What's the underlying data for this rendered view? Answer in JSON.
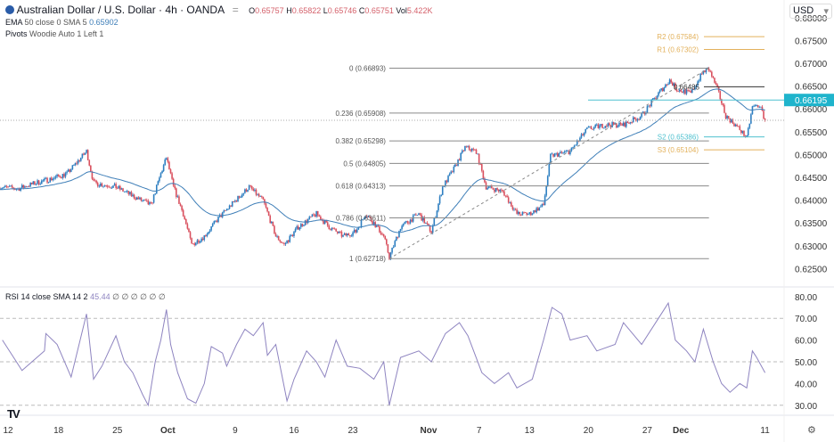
{
  "header": {
    "symbol_icon": "aud-usd-flag-icon",
    "title": "Australian Dollar / U.S. Dollar · 4h · OANDA",
    "ohlc": {
      "o_label": "O",
      "o": "0.65757",
      "h_label": "H",
      "h": "0.65822",
      "l_label": "L",
      "l": "0.65746",
      "c_label": "C",
      "c": "0.65751",
      "vol_label": "Vol",
      "vol": "5.422K"
    },
    "ema": {
      "name": "EMA",
      "params": "50 close 0 SMA 5",
      "value": "0.65902"
    },
    "pivots": {
      "name": "Pivots",
      "params": "Woodie Auto 1 Left 1"
    },
    "currency": "USD"
  },
  "colors": {
    "up": "#2e7fc1",
    "down": "#d9505e",
    "ema": "#3f7fb8",
    "fib": "#8a8a8a",
    "pivot_r": "#e3b15b",
    "pivot_s2": "#4fc1cf",
    "pivot_s3": "#e3b15b",
    "hline": "#4fc1cf",
    "rsi": "#8e84c0"
  },
  "chart_data": [
    {
      "type": "candlestick",
      "title": "Australian Dollar / U.S. Dollar · 4h · OANDA",
      "ylim": [
        0.625,
        0.68
      ],
      "y_ticks": [
        "0.68000",
        "0.67500",
        "0.67000",
        "0.66500",
        "0.66000",
        "0.65500",
        "0.65000",
        "0.64500",
        "0.64000",
        "0.63500",
        "0.63000",
        "0.62500"
      ],
      "x_ticks": [
        [
          "09-12",
          "12"
        ],
        [
          "09-18",
          "18"
        ],
        [
          "09-25",
          "25"
        ],
        [
          "10-01",
          "Oct"
        ],
        [
          "10-09",
          "9"
        ],
        [
          "10-16",
          "16"
        ],
        [
          "10-23",
          "23"
        ],
        [
          "11-01",
          "Nov"
        ],
        [
          "11-07",
          "7"
        ],
        [
          "11-13",
          "13"
        ],
        [
          "11-20",
          "20"
        ],
        [
          "11-27",
          "27"
        ],
        [
          "12-01",
          "Dec"
        ],
        [
          "12-11",
          "11"
        ]
      ],
      "price_path": [
        [
          "09-11 00",
          0.6429
        ],
        [
          "09-13 04",
          0.6425
        ],
        [
          "09-15 08",
          0.6438
        ],
        [
          "09-17 08",
          0.6448
        ],
        [
          "09-19 00",
          0.6458
        ],
        [
          "09-21 08",
          0.6507
        ],
        [
          "09-22 04",
          0.6438
        ],
        [
          "09-24 20",
          0.6429
        ],
        [
          "09-26 20",
          0.6409
        ],
        [
          "09-29 00",
          0.6389
        ],
        [
          "09-30 04",
          0.6458
        ],
        [
          "09-30 20",
          0.6493
        ],
        [
          "10-01 16",
          0.6429
        ],
        [
          "10-02 20",
          0.637
        ],
        [
          "10-03 20",
          0.6302
        ],
        [
          "10-05 08",
          0.6321
        ],
        [
          "10-07 00",
          0.636
        ],
        [
          "10-08 12",
          0.6389
        ],
        [
          "10-10 16",
          0.6429
        ],
        [
          "10-12 08",
          0.6399
        ],
        [
          "10-13 20",
          0.6321
        ],
        [
          "10-14 20",
          0.6302
        ],
        [
          "10-16 12",
          0.6341
        ],
        [
          "10-18 16",
          0.637
        ],
        [
          "10-20 04",
          0.6341
        ],
        [
          "10-21 20",
          0.6321
        ],
        [
          "10-23 08",
          0.6331
        ],
        [
          "10-24 12",
          0.637
        ],
        [
          "10-25 12",
          0.635
        ],
        [
          "10-26 16",
          0.6321
        ],
        [
          "10-27 08",
          0.6275
        ],
        [
          "10-28 16",
          0.6341
        ],
        [
          "10-30 20",
          0.637
        ],
        [
          "11-01 08",
          0.6331
        ],
        [
          "11-02 16",
          0.6429
        ],
        [
          "11-04 00",
          0.6468
        ],
        [
          "11-05 08",
          0.6516
        ],
        [
          "11-06 16",
          0.6507
        ],
        [
          "11-07 20",
          0.6429
        ],
        [
          "11-09 20",
          0.6419
        ],
        [
          "11-11 12",
          0.637
        ],
        [
          "11-13 00",
          0.637
        ],
        [
          "11-14 16",
          0.6389
        ],
        [
          "11-15 12",
          0.6497
        ],
        [
          "11-17 20",
          0.6507
        ],
        [
          "11-19 20",
          0.6555
        ],
        [
          "11-22 00",
          0.6565
        ],
        [
          "11-24 04",
          0.6565
        ],
        [
          "11-26 08",
          0.6585
        ],
        [
          "11-28 08",
          0.6634
        ],
        [
          "11-29 16",
          0.6663
        ],
        [
          "11-30 12",
          0.6643
        ],
        [
          "12-02 04",
          0.6634
        ],
        [
          "12-03 16",
          0.6682
        ],
        [
          "12-04 08",
          0.6686
        ],
        [
          "12-05 08",
          0.6643
        ],
        [
          "12-06 08",
          0.6585
        ],
        [
          "12-08 00",
          0.6555
        ],
        [
          "12-08 20",
          0.6536
        ],
        [
          "12-09 12",
          0.6604
        ],
        [
          "12-10 08",
          0.6608
        ],
        [
          "12-11 00",
          0.6575
        ]
      ],
      "last_price": 0.65751,
      "horizontal_line": {
        "value": 0.66195,
        "label": "0.66195"
      },
      "fibonacci": {
        "from": [
          "10-27 08",
          0.62718
        ],
        "to": [
          "12-04 08",
          0.66893
        ],
        "levels": [
          {
            "label": "0 (0.66893)",
            "value": 0.66893
          },
          {
            "label": "0.236 (0.65908)",
            "value": 0.65908
          },
          {
            "label": "0.382 (0.65298)",
            "value": 0.65298
          },
          {
            "label": "0.5 (0.64805)",
            "value": 0.64805
          },
          {
            "label": "0.618 (0.64313)",
            "value": 0.64313
          },
          {
            "label": "0.786 (0.63611)",
            "value": 0.63611
          },
          {
            "label": "1 (0.62718)",
            "value": 0.62718
          }
        ]
      },
      "pivot_levels": [
        {
          "label": "R2 (0.67584)",
          "value": 0.67584,
          "color": "pivot_r"
        },
        {
          "label": "R1 (0.67302)",
          "value": 0.67302,
          "color": "pivot_r"
        },
        {
          "label": "0.66485",
          "value": 0.66485,
          "color": "dark"
        },
        {
          "label": "S2 (0.65386)",
          "value": 0.65386,
          "color": "pivot_s2"
        },
        {
          "label": "S3 (0.65104)",
          "value": 0.65104,
          "color": "pivot_s3"
        }
      ]
    },
    {
      "type": "line",
      "title": "RSI 14 close SMA 14 2",
      "value_label": "45.44",
      "extra": "∅ ∅ ∅ ∅ ∅ ∅",
      "ylim": [
        25,
        82
      ],
      "y_ticks": [
        "80.00",
        "70.00",
        "60.00",
        "50.00",
        "40.00",
        "30.00"
      ],
      "bands": [
        70,
        50,
        30
      ],
      "series": [
        [
          "09-11 08",
          60
        ],
        [
          "09-12 16",
          52
        ],
        [
          "09-13 16",
          46
        ],
        [
          "09-16 08",
          55
        ],
        [
          "09-16 12",
          63
        ],
        [
          "09-17 20",
          58
        ],
        [
          "09-19 12",
          43
        ],
        [
          "09-21 08",
          72
        ],
        [
          "09-21 16",
          60
        ],
        [
          "09-22 04",
          42
        ],
        [
          "09-23 04",
          48
        ],
        [
          "09-24 20",
          62
        ],
        [
          "09-25 20",
          50
        ],
        [
          "09-26 20",
          45
        ],
        [
          "09-28 00",
          35
        ],
        [
          "09-28 16",
          30
        ],
        [
          "09-29 12",
          50
        ],
        [
          "09-30 04",
          60
        ],
        [
          "09-30 20",
          74
        ],
        [
          "10-01 08",
          58
        ],
        [
          "10-02 04",
          45
        ],
        [
          "10-03 08",
          33
        ],
        [
          "10-04 08",
          31
        ],
        [
          "10-05 08",
          40
        ],
        [
          "10-06 04",
          57
        ],
        [
          "10-07 12",
          54
        ],
        [
          "10-08 00",
          48
        ],
        [
          "10-09 04",
          58
        ],
        [
          "10-10 04",
          65
        ],
        [
          "10-11 04",
          62
        ],
        [
          "10-12 08",
          68
        ],
        [
          "10-12 20",
          53
        ],
        [
          "10-13 20",
          58
        ],
        [
          "10-15 04",
          32
        ],
        [
          "10-16 00",
          42
        ],
        [
          "10-17 12",
          55
        ],
        [
          "10-18 16",
          50
        ],
        [
          "10-19 16",
          43
        ],
        [
          "10-21 00",
          60
        ],
        [
          "10-22 08",
          48
        ],
        [
          "10-23 20",
          47
        ],
        [
          "10-25 12",
          42
        ],
        [
          "10-26 16",
          50
        ],
        [
          "10-27 08",
          30
        ],
        [
          "10-28 16",
          52
        ],
        [
          "10-30 20",
          55
        ],
        [
          "11-01 08",
          50
        ],
        [
          "11-03 00",
          63
        ],
        [
          "11-04 16",
          68
        ],
        [
          "11-05 16",
          62
        ],
        [
          "11-07 08",
          45
        ],
        [
          "11-08 20",
          40
        ],
        [
          "11-10 12",
          45
        ],
        [
          "11-11 12",
          38
        ],
        [
          "11-13 08",
          42
        ],
        [
          "11-14 16",
          60
        ],
        [
          "11-15 16",
          75
        ],
        [
          "11-16 20",
          72
        ],
        [
          "11-17 20",
          60
        ],
        [
          "11-19 20",
          62
        ],
        [
          "11-21 00",
          55
        ],
        [
          "11-23 04",
          58
        ],
        [
          "11-24 04",
          68
        ],
        [
          "11-26 08",
          58
        ],
        [
          "11-28 08",
          70
        ],
        [
          "11-29 12",
          77
        ],
        [
          "11-30 08",
          60
        ],
        [
          "12-01 16",
          55
        ],
        [
          "12-02 16",
          50
        ],
        [
          "12-03 16",
          65
        ],
        [
          "12-04 20",
          50
        ],
        [
          "12-05 20",
          40
        ],
        [
          "12-06 20",
          36
        ],
        [
          "12-08 00",
          40
        ],
        [
          "12-08 20",
          38
        ],
        [
          "12-09 12",
          55
        ],
        [
          "12-10 00",
          52
        ],
        [
          "12-11 00",
          45
        ]
      ]
    }
  ],
  "footer": {
    "logo": "TV",
    "settings_icon": "gear-icon"
  }
}
